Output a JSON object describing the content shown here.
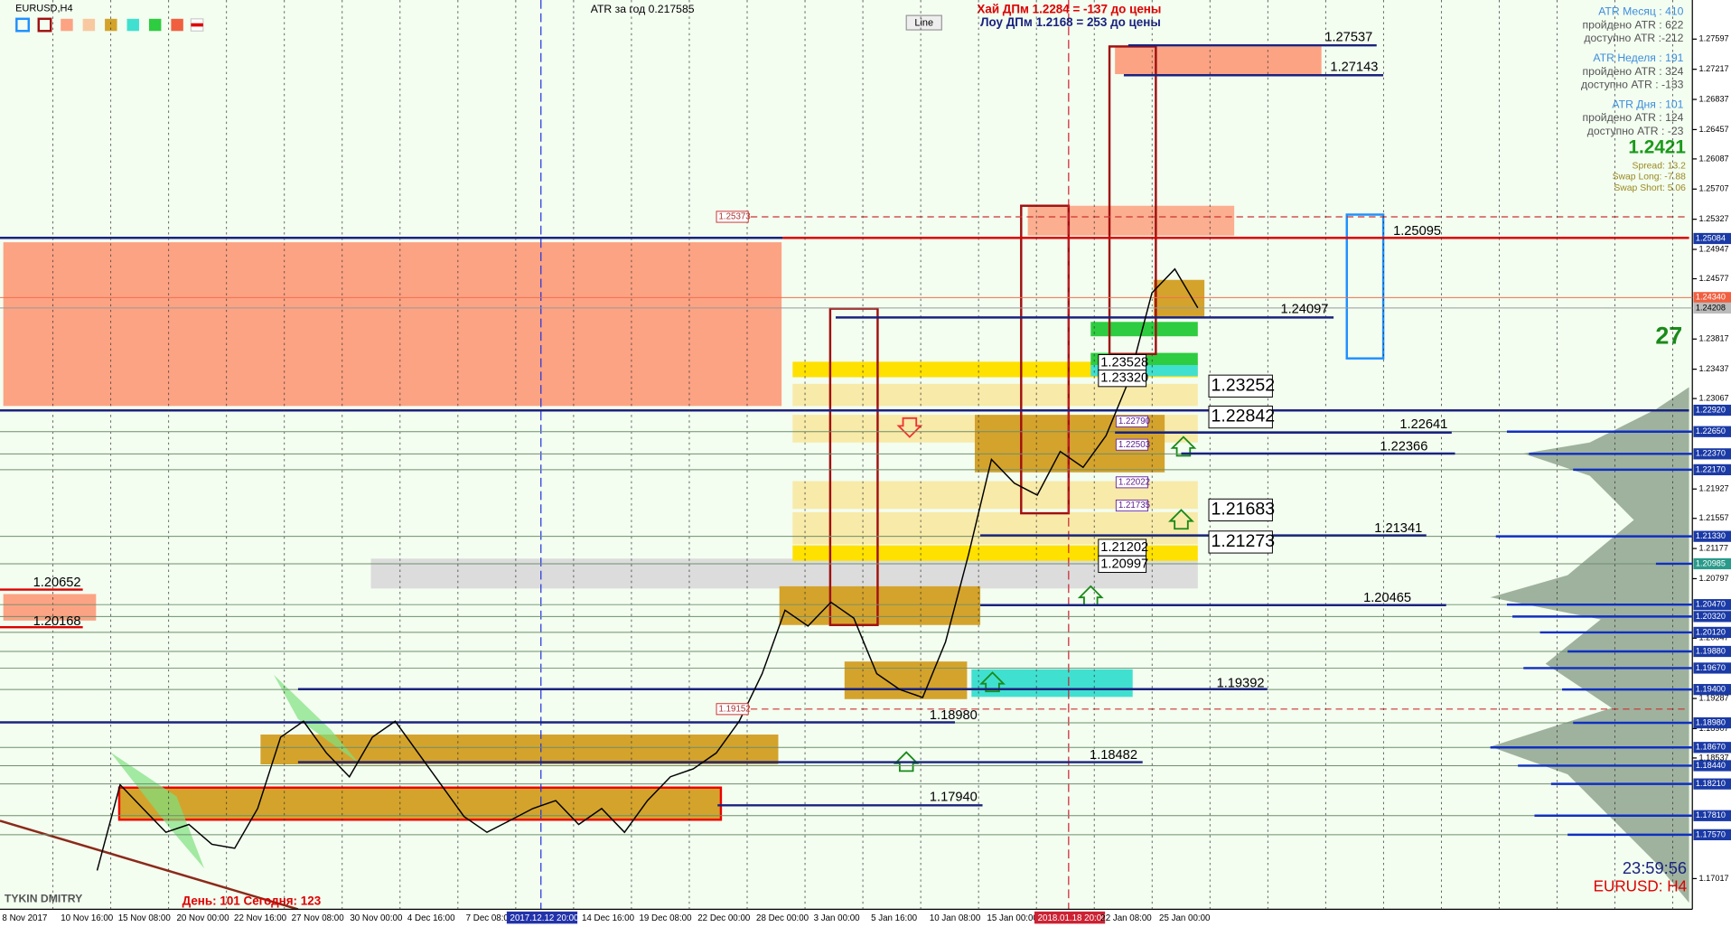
{
  "window": {
    "symbol": "EURUSD,H4",
    "atr_year": "ATR за год 0.217585",
    "button": "Line",
    "high_note": "Хай ДПм 1.2284 = -137 до цены",
    "low_note": "Лоу ДПм 1.2168 = 253 до цены",
    "author": "TYKIN DMITRY",
    "day_note": "День: 101  Сегодня: 123"
  },
  "info_panel": [
    "ATR Месяц : 410",
    "пройдено ATR : 622",
    "доступно ATR :-212",
    "ATR Неделя : 191",
    "пройдено ATR : 324",
    "доступно ATR : -133",
    "ATR Дня : 101",
    "пройдено ATR : 124",
    "доступно ATR : -23"
  ],
  "price": "1.2421",
  "swap": [
    "Spread: 13.2",
    "Swap Long: -7.88",
    "Swap Short: 5.06"
  ],
  "counter": "27",
  "clock": "23:59:56",
  "symbol_tf": "EURUSD: H4",
  "chart_data": {
    "type": "line",
    "ylim": [
      1.1663,
      1.2809
    ],
    "yticks": [
      1.27597,
      1.27217,
      1.26837,
      1.26457,
      1.26087,
      1.25707,
      1.25327,
      1.24947,
      1.24577,
      1.23817,
      1.23437,
      1.23067,
      1.21927,
      1.21557,
      1.21177,
      1.20797,
      1.20047,
      1.19287,
      1.18907,
      1.18537,
      1.17017
    ],
    "levels": [
      {
        "value": 1.25084,
        "label": "1.25084"
      },
      {
        "value": 1.2434,
        "label": "1.24340"
      },
      {
        "value": 1.24208,
        "label": "1.24208"
      },
      {
        "value": 1.2292,
        "label": "1.22920"
      },
      {
        "value": 1.2265,
        "label": "1.22650"
      },
      {
        "value": 1.2237,
        "label": "1.22370"
      },
      {
        "value": 1.2217,
        "label": "1.22170"
      },
      {
        "value": 1.2133,
        "label": "1.21330"
      },
      {
        "value": 1.20985,
        "label": "1.20985"
      },
      {
        "value": 1.2047,
        "label": "1.20470"
      },
      {
        "value": 1.2032,
        "label": "1.20320"
      },
      {
        "value": 1.2012,
        "label": "1.20120"
      },
      {
        "value": 1.1988,
        "label": "1.19880"
      },
      {
        "value": 1.1967,
        "label": "1.19670"
      },
      {
        "value": 1.194,
        "label": "1.19400"
      },
      {
        "value": 1.1898,
        "label": "1.18980"
      },
      {
        "value": 1.1867,
        "label": "1.18670"
      },
      {
        "value": 1.1844,
        "label": "1.18440"
      },
      {
        "value": 1.1821,
        "label": "1.18210"
      },
      {
        "value": 1.1781,
        "label": "1.17810"
      },
      {
        "value": 1.1757,
        "label": "1.17570"
      }
    ],
    "dates": [
      "8 Nov 2017",
      "10 Nov 16:00",
      "15 Nov 08:00",
      "20 Nov 00:00",
      "22 Nov 16:00",
      "27 Nov 08:00",
      "30 Nov 00:00",
      "4 Dec 16:00",
      "7 Dec 08:00",
      "2017.12.12 20:00",
      "14 Dec 16:00",
      "19 Dec 08:00",
      "22 Dec 00:00",
      "28 Dec 00:00",
      "3 Jan 00:00",
      "5 Jan 16:00",
      "10 Jan 08:00",
      "15 Jan 00:00",
      "2018.01.18 20:00",
      "22 Jan 08:00",
      "25 Jan 00:00"
    ],
    "close": [
      1.1712,
      1.182,
      1.179,
      1.176,
      1.177,
      1.1745,
      1.174,
      1.179,
      1.188,
      1.19,
      1.186,
      1.183,
      1.188,
      1.19,
      1.186,
      1.182,
      1.178,
      1.176,
      1.1775,
      1.179,
      1.18,
      1.177,
      1.179,
      1.176,
      1.18,
      1.183,
      1.184,
      1.186,
      1.19,
      1.196,
      1.204,
      1.202,
      1.205,
      1.203,
      1.196,
      1.194,
      1.193,
      1.2,
      1.211,
      1.223,
      1.22,
      1.2185,
      1.224,
      1.222,
      1.226,
      1.233,
      1.244,
      1.247,
      1.2421
    ],
    "color": "#000000"
  },
  "labels": [
    "1.27537",
    "1.27143",
    "1.25095",
    "1.24097",
    "1.23252",
    "1.22842",
    "1.22641",
    "1.22366",
    "1.21683",
    "1.21341",
    "1.21273",
    "1.20465",
    "1.19392",
    "1.18980",
    "1.18482",
    "1.17940",
    "1.20652",
    "1.20168",
    "1.23528",
    "1.23320",
    "1.21202",
    "1.20997",
    "1.25373",
    "1.19152",
    "1.22790",
    "1.22503",
    "1.22022",
    "1.21735"
  ]
}
